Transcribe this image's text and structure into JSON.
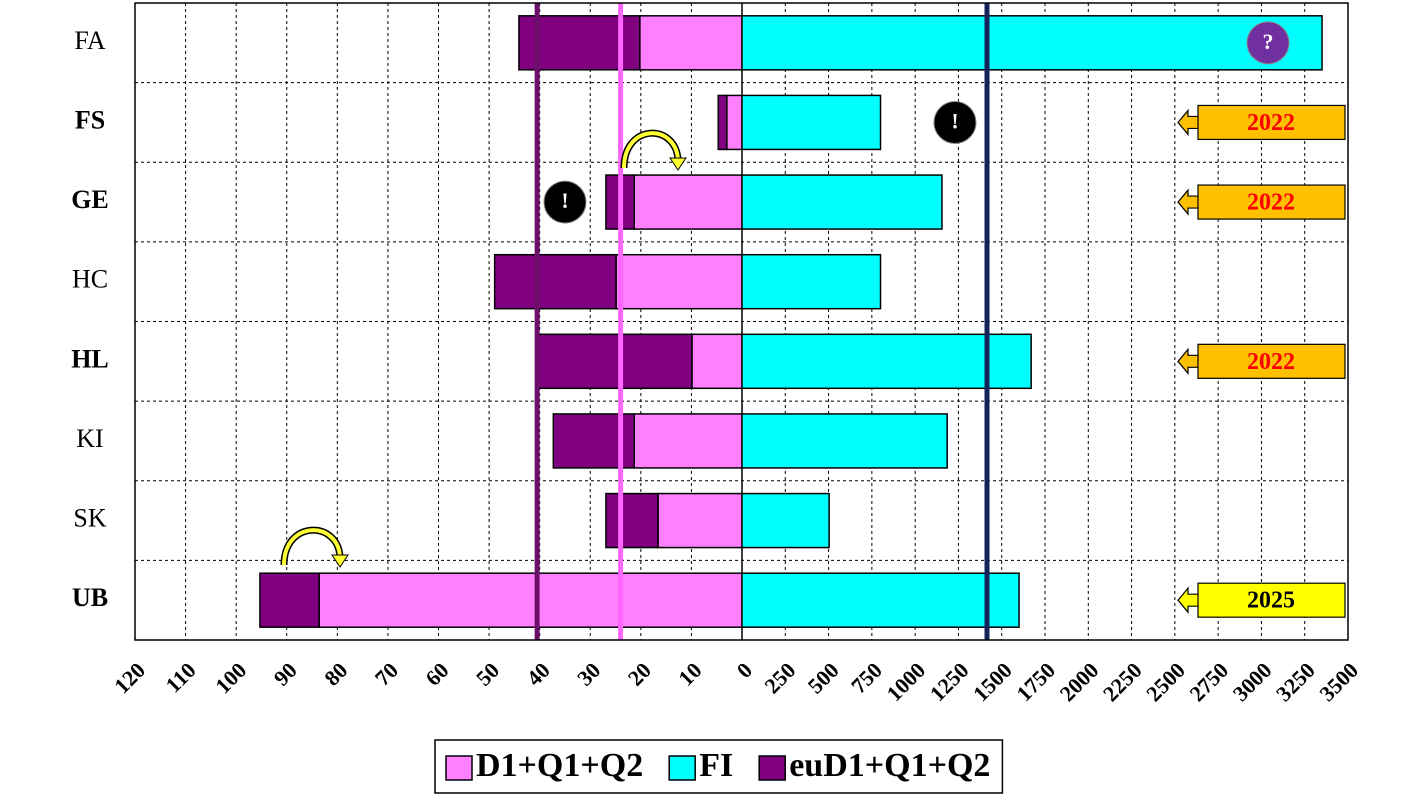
{
  "chart_data": {
    "type": "bar",
    "orientation": "horizontal",
    "categories": [
      "FA",
      "FS",
      "GE",
      "HC",
      "HL",
      "KI",
      "SK",
      "UB"
    ],
    "bold": [
      false,
      true,
      true,
      false,
      true,
      false,
      false,
      true
    ],
    "x2lim": [
      120,
      0
    ],
    "x2ticks": [
      120,
      110,
      100,
      90,
      80,
      70,
      60,
      50,
      40,
      30,
      20,
      10
    ],
    "xlim": [
      0,
      3500
    ],
    "xticks": [
      0,
      250,
      500,
      750,
      1000,
      1250,
      1500,
      1750,
      2000,
      2250,
      2500,
      2750,
      3000,
      3250,
      3500
    ],
    "grid": true,
    "stacked": true,
    "series": [
      {
        "name": "D1+Q1+Q2",
        "color": "#ff80ff",
        "axis": "x2",
        "values": [
          20.2,
          3,
          21.3,
          24.9,
          9.9,
          21.3,
          16.6,
          83.6
        ]
      },
      {
        "name": "FI",
        "color": "#00ffff",
        "values": [
          3350,
          800,
          1155,
          800,
          1670,
          1185,
          503,
          1600
        ]
      },
      {
        "name": "euD1+Q1+Q2",
        "color": "#800080",
        "axis": "x2",
        "values": [
          23.9,
          1.7,
          5.6,
          24,
          30.6,
          16,
          10.3,
          11.7
        ]
      }
    ],
    "reference_lines": [
      {
        "value": 40.5,
        "axis": "x2",
        "color": "#6a0f6a"
      },
      {
        "value": 24,
        "axis": "x2",
        "color": "#ff66ff"
      },
      {
        "value": 1415,
        "color": "#14245a"
      }
    ],
    "badges": [
      null,
      "2022",
      "2022",
      null,
      "2022",
      null,
      null,
      "2025"
    ],
    "badge_colors": [
      null,
      "#ffc000",
      "#ffc000",
      null,
      "#ffc000",
      null,
      null,
      "#ffff00"
    ],
    "badge_text_colors": [
      null,
      "#ff0000",
      "#ff0000",
      null,
      "#ff0000",
      null,
      null,
      "#000000"
    ],
    "markers": [
      "?",
      "!",
      "!",
      null,
      null,
      null,
      null,
      null
    ],
    "marker_colors": [
      "#7030a0",
      "#000000",
      "#000000",
      null,
      null,
      null,
      null,
      null
    ],
    "legend": "bottom"
  }
}
